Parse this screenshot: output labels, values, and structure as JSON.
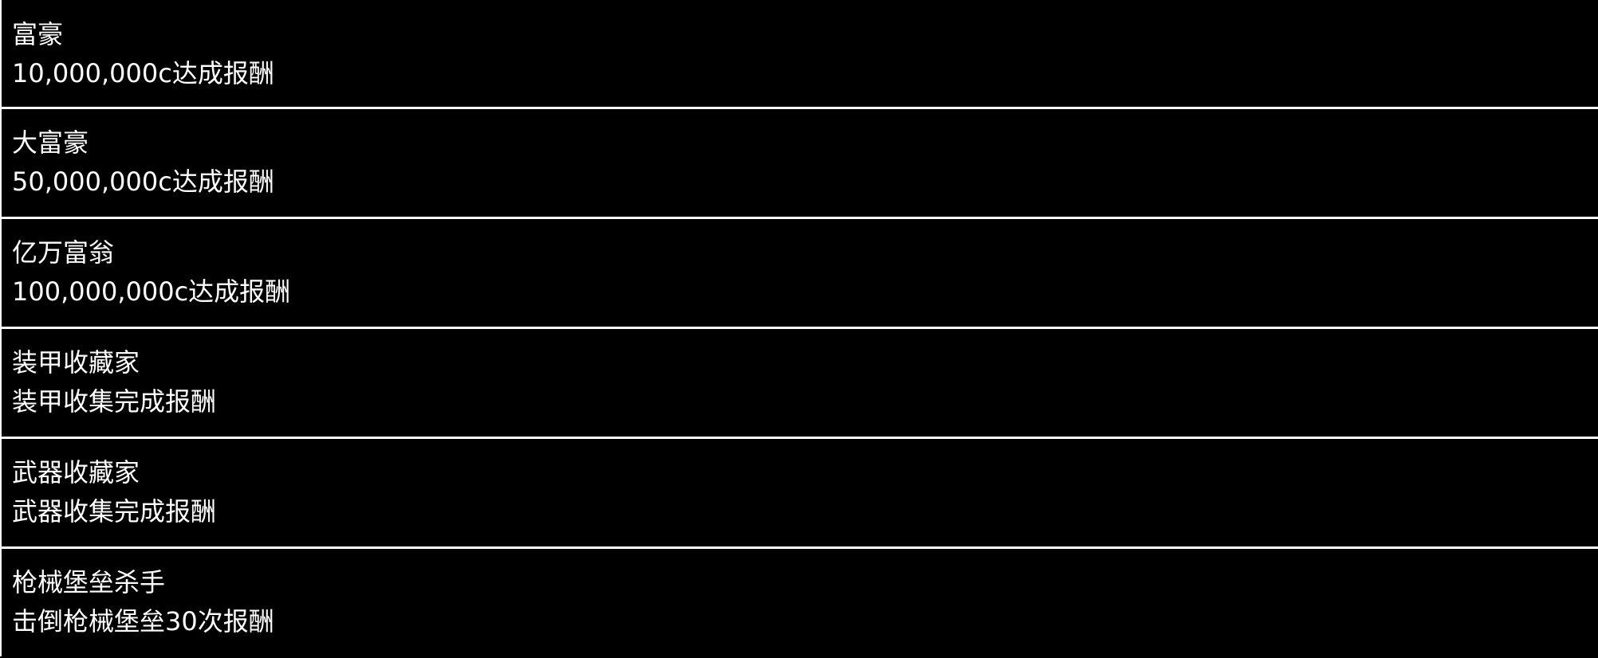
{
  "achievements": [
    {
      "title": "富豪",
      "description": "10,000,000c达成报酬"
    },
    {
      "title": "大富豪",
      "description": "50,000,000c达成报酬"
    },
    {
      "title": "亿万富翁",
      "description": "100,000,000c达成报酬"
    },
    {
      "title": "装甲收藏家",
      "description": "装甲收集完成报酬"
    },
    {
      "title": "武器收藏家",
      "description": "武器收集完成报酬"
    },
    {
      "title": "枪械堡垒杀手",
      "description": "击倒枪械堡垒30次报酬"
    }
  ]
}
